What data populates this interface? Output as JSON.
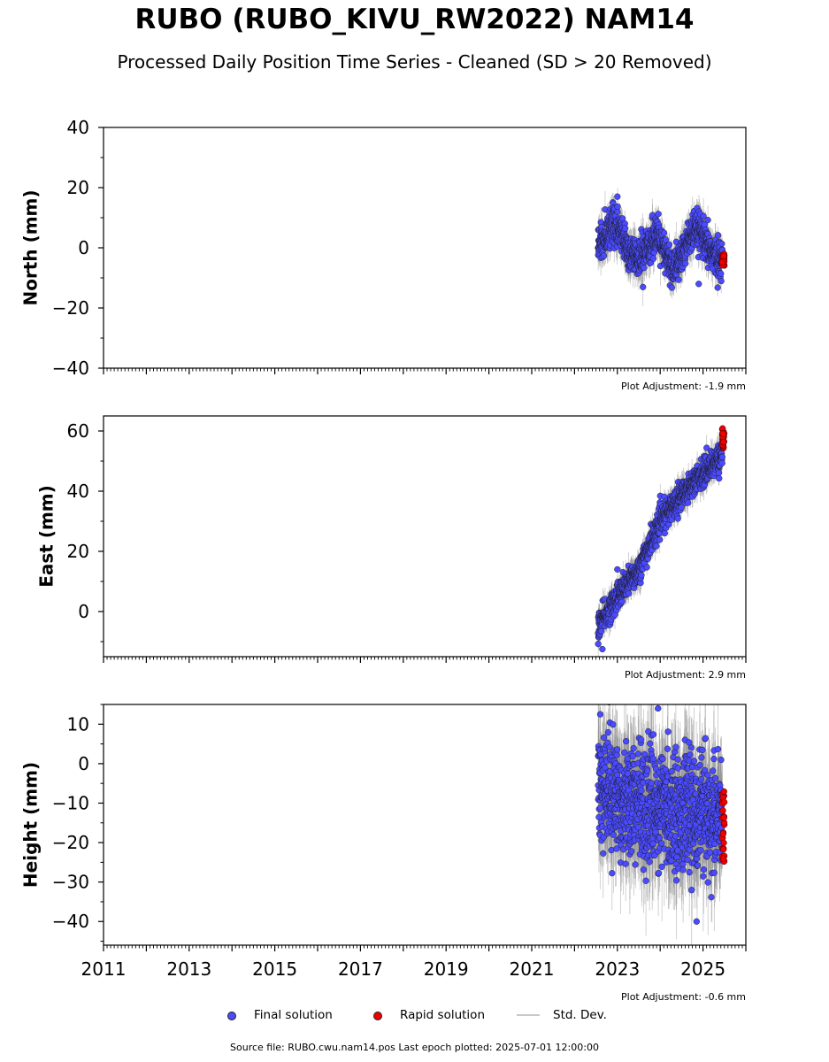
{
  "title": "RUBO (RUBO_KIVU_RW2022) NAM14",
  "subtitle": "Processed Daily Position Time Series - Cleaned (SD > 20 Removed)",
  "footer": "Source file: RUBO.cwu.nam14.pos  Last epoch plotted: 2025-07-01 12:00:00",
  "legend": {
    "final": {
      "label": "Final solution",
      "color": "#4a4aff"
    },
    "rapid": {
      "label": "Rapid solution",
      "color": "#ee0000"
    },
    "std": {
      "label": "Std. Dev.",
      "color": "#c8c8c8"
    }
  },
  "chart_data": [
    {
      "type": "scatter",
      "ylabel": "North (mm)",
      "xlim": [
        2011,
        2026
      ],
      "ylim": [
        -40,
        40
      ],
      "yticks": [
        -40,
        -20,
        0,
        20,
        40
      ],
      "ytick_labels": [
        "−40",
        "−20",
        "0",
        "20",
        "40"
      ],
      "adjustment": "Plot Adjustment: -1.9 mm",
      "final_trend": {
        "x": [
          2022.55,
          2022.7,
          2022.9,
          2023.1,
          2023.3,
          2023.5,
          2023.7,
          2023.9,
          2024.1,
          2024.3,
          2024.5,
          2024.7,
          2024.9,
          2025.1,
          2025.3,
          2025.45
        ],
        "y": [
          1,
          3,
          8,
          5,
          -3,
          -4,
          0,
          5,
          -2,
          -7,
          -3,
          4,
          6,
          0,
          -3,
          -4
        ]
      },
      "final_noise_sd": 3.0,
      "final_x_range": [
        2022.55,
        2025.45
      ],
      "rapid": {
        "x": [
          2025.45,
          2025.5
        ],
        "y": [
          -2,
          -6
        ]
      },
      "outliers": [
        {
          "x": 2023.0,
          "y": 17
        },
        {
          "x": 2024.9,
          "y": -12
        }
      ]
    },
    {
      "type": "scatter",
      "ylabel": "East (mm)",
      "xlim": [
        2011,
        2026
      ],
      "ylim": [
        -15,
        65
      ],
      "yticks": [
        0,
        20,
        40,
        60
      ],
      "ytick_labels": [
        "0",
        "20",
        "40",
        "60"
      ],
      "adjustment": "Plot Adjustment: 2.9 mm",
      "final_trend": {
        "x": [
          2022.55,
          2023.0,
          2023.5,
          2024.0,
          2024.5,
          2025.0,
          2025.45
        ],
        "y": [
          -5,
          5,
          14,
          30,
          39,
          46,
          52
        ]
      },
      "final_noise_sd": 2.2,
      "final_x_range": [
        2022.55,
        2025.45
      ],
      "rapid": {
        "x": [
          2025.45,
          2025.5
        ],
        "y": [
          54,
          61
        ]
      },
      "outliers": [
        {
          "x": 2022.65,
          "y": -12.5
        },
        {
          "x": 2023.0,
          "y": 14
        }
      ]
    },
    {
      "type": "scatter",
      "ylabel": "Height (mm)",
      "xlim": [
        2011,
        2026
      ],
      "ylim": [
        -46,
        15
      ],
      "yticks": [
        -40,
        -30,
        -20,
        -10,
        0,
        10
      ],
      "ytick_labels": [
        "−40",
        "−30",
        "−20",
        "−10",
        "0",
        "10"
      ],
      "xticks": [
        2011,
        2013,
        2015,
        2017,
        2019,
        2021,
        2023,
        2025
      ],
      "xtick_labels": [
        "2011",
        "2013",
        "2015",
        "2017",
        "2019",
        "2021",
        "2023",
        "2025"
      ],
      "adjustment": "Plot Adjustment: -0.6 mm",
      "final_trend": {
        "x": [
          2022.55,
          2023.0,
          2023.5,
          2024.0,
          2024.5,
          2025.0,
          2025.45
        ],
        "y": [
          -5,
          -8,
          -10,
          -12,
          -12,
          -13,
          -14
        ]
      },
      "final_noise_sd": 7.0,
      "final_x_range": [
        2022.55,
        2025.45
      ],
      "rapid": {
        "x": [
          2025.45,
          2025.5
        ],
        "y": [
          -7,
          -25
        ]
      },
      "outliers": [
        {
          "x": 2024.85,
          "y": -40
        },
        {
          "x": 2023.95,
          "y": 14
        },
        {
          "x": 2022.6,
          "y": 12.5
        }
      ]
    }
  ]
}
